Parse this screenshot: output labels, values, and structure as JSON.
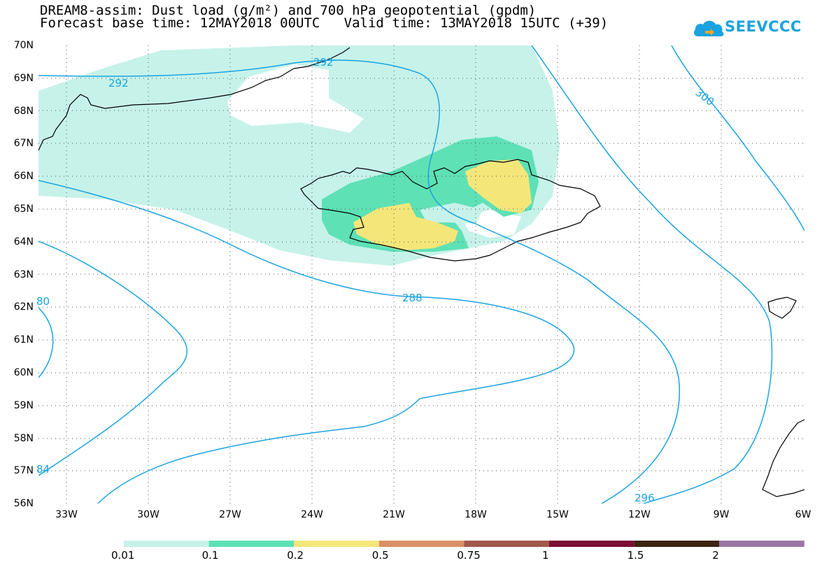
{
  "title": {
    "line1": "DREAM8-assim: Dust load (g/m²) and 700 hPa geopotential (gpdm)",
    "line2": "Forecast base time: 12MAY2018 00UTC   Valid time: 13MAY2018 15UTC (+39)"
  },
  "logo": {
    "text": "SEEVCCC",
    "icon": "cloud-logo-icon",
    "color": "#1aa3e0"
  },
  "map": {
    "lat_labels": [
      "70N",
      "69N",
      "68N",
      "67N",
      "66N",
      "65N",
      "64N",
      "63N",
      "62N",
      "61N",
      "60N",
      "59N",
      "58N",
      "57N",
      "56N"
    ],
    "lon_labels": [
      "33W",
      "30W",
      "27W",
      "24W",
      "21W",
      "18W",
      "15W",
      "12W",
      "9W",
      "6W"
    ],
    "contour_labels": [
      "292",
      "292",
      "300",
      "288",
      "296",
      "80",
      "84"
    ],
    "contour_color": "#1aa3e0",
    "grid": "dotted"
  },
  "colorbar": {
    "labels": [
      "0.01",
      "0.1",
      "0.2",
      "0.5",
      "0.75",
      "1",
      "1.5",
      "2"
    ],
    "colors": [
      "#c6f2ea",
      "#5ee1b5",
      "#f5e67a",
      "#dc9066",
      "#a3574b",
      "#7a0f33",
      "#3b2410",
      "#9a77a5"
    ]
  }
}
